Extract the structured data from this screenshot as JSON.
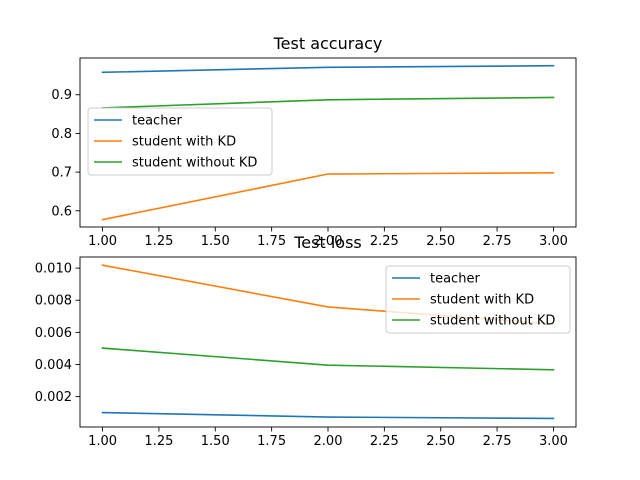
{
  "chart_data": [
    {
      "type": "line",
      "title": "Test accuracy",
      "xlabel": "",
      "ylabel": "",
      "xlim": [
        0.9,
        3.1
      ],
      "ylim": [
        0.558,
        0.995
      ],
      "xticks": [
        1.0,
        1.25,
        1.5,
        1.75,
        2.0,
        2.25,
        2.5,
        2.75,
        3.0
      ],
      "xtick_labels": [
        "1.00",
        "1.25",
        "1.50",
        "1.75",
        "2.00",
        "2.25",
        "2.50",
        "2.75",
        "3.00"
      ],
      "yticks": [
        0.6,
        0.7,
        0.8,
        0.9
      ],
      "ytick_labels": [
        "0.6",
        "0.7",
        "0.8",
        "0.9"
      ],
      "grid": false,
      "legend_position": "center-left",
      "x": [
        1,
        2,
        3
      ],
      "series": [
        {
          "name": "teacher",
          "color": "#1f77b4",
          "values": [
            0.958,
            0.971,
            0.975
          ]
        },
        {
          "name": "student with KD",
          "color": "#ff7f0e",
          "values": [
            0.577,
            0.695,
            0.698
          ]
        },
        {
          "name": "student without KD",
          "color": "#2ca02c",
          "values": [
            0.866,
            0.887,
            0.893
          ]
        }
      ]
    },
    {
      "type": "line",
      "title": "Test loss",
      "xlabel": "",
      "ylabel": "",
      "xlim": [
        0.9,
        3.1
      ],
      "ylim": [
        0.00011,
        0.01069
      ],
      "xticks": [
        1.0,
        1.25,
        1.5,
        1.75,
        2.0,
        2.25,
        2.5,
        2.75,
        3.0
      ],
      "xtick_labels": [
        "1.00",
        "1.25",
        "1.50",
        "1.75",
        "2.00",
        "2.25",
        "2.50",
        "2.75",
        "3.00"
      ],
      "yticks": [
        0.002,
        0.004,
        0.006,
        0.008,
        0.01
      ],
      "ytick_labels": [
        "0.002",
        "0.004",
        "0.006",
        "0.008",
        "0.010"
      ],
      "grid": false,
      "legend_position": "top-right",
      "x": [
        1,
        2,
        3
      ],
      "series": [
        {
          "name": "teacher",
          "color": "#1f77b4",
          "values": [
            0.00101,
            0.00073,
            0.00064
          ]
        },
        {
          "name": "student with KD",
          "color": "#ff7f0e",
          "values": [
            0.01018,
            0.00758,
            0.00652
          ]
        },
        {
          "name": "student without KD",
          "color": "#2ca02c",
          "values": [
            0.00502,
            0.00396,
            0.00367
          ]
        }
      ]
    }
  ]
}
